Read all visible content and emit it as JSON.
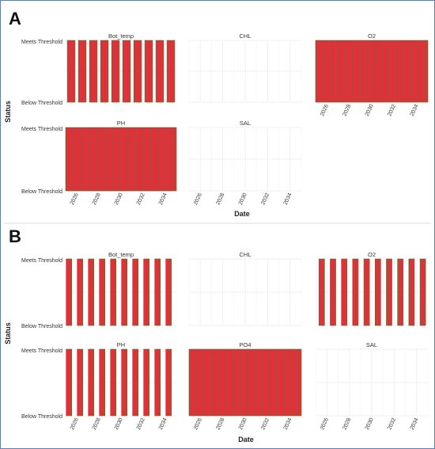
{
  "chart_data": [
    {
      "panel_label": "A",
      "type": "bar",
      "xlabel": "Date",
      "ylabel": "Status",
      "y_categories": [
        "Below Threshold",
        "Meets Threshold"
      ],
      "x_ticks": [
        "2026",
        "2028",
        "2030",
        "2032",
        "2034"
      ],
      "xlim": [
        2025,
        2035
      ],
      "bar_fill": "#e0323a",
      "bar_outline": "#5a6b2a",
      "facets": [
        {
          "title": "Bot_temp",
          "row": 0,
          "col": 0,
          "pattern": "seasonal",
          "segments": [
            [
              2025.15,
              2025.85
            ],
            [
              2026.15,
              2026.85
            ],
            [
              2027.15,
              2027.85
            ],
            [
              2028.15,
              2028.85
            ],
            [
              2029.15,
              2029.85
            ],
            [
              2030.15,
              2030.85
            ],
            [
              2031.15,
              2031.85
            ],
            [
              2032.15,
              2032.85
            ],
            [
              2033.15,
              2033.85
            ],
            [
              2034.15,
              2034.85
            ]
          ]
        },
        {
          "title": "CHL",
          "row": 0,
          "col": 1,
          "pattern": "none",
          "segments": []
        },
        {
          "title": "O2",
          "row": 0,
          "col": 2,
          "pattern": "full",
          "segments": [
            [
              2025.0,
              2035.0
            ]
          ]
        },
        {
          "title": "PH",
          "row": 1,
          "col": 0,
          "pattern": "full",
          "segments": [
            [
              2025.0,
              2035.0
            ]
          ]
        },
        {
          "title": "SAL",
          "row": 1,
          "col": 1,
          "pattern": "none",
          "segments": []
        }
      ]
    },
    {
      "panel_label": "B",
      "type": "bar",
      "xlabel": "Date",
      "ylabel": "Status",
      "y_categories": [
        "Below Threshold",
        "Meets Threshold"
      ],
      "x_ticks": [
        "2026",
        "2028",
        "2030",
        "2032",
        "2034"
      ],
      "xlim": [
        2025,
        2035
      ],
      "bar_fill": "#e0323a",
      "bar_outline": "#5a6b2a",
      "facets": [
        {
          "title": "Bot_temp",
          "row": 0,
          "col": 0,
          "pattern": "seasonal",
          "segments": [
            [
              2025.05,
              2025.55
            ],
            [
              2026.05,
              2026.55
            ],
            [
              2027.05,
              2027.55
            ],
            [
              2028.05,
              2028.55
            ],
            [
              2029.05,
              2029.55
            ],
            [
              2030.05,
              2030.55
            ],
            [
              2031.05,
              2031.55
            ],
            [
              2032.05,
              2032.55
            ],
            [
              2033.05,
              2033.55
            ],
            [
              2034.05,
              2034.55
            ]
          ]
        },
        {
          "title": "CHL",
          "row": 0,
          "col": 1,
          "pattern": "none",
          "segments": []
        },
        {
          "title": "O2",
          "row": 0,
          "col": 2,
          "pattern": "seasonal",
          "segments": [
            [
              2025.3,
              2025.8
            ],
            [
              2026.3,
              2026.8
            ],
            [
              2027.3,
              2027.8
            ],
            [
              2028.3,
              2028.8
            ],
            [
              2029.3,
              2029.8
            ],
            [
              2030.3,
              2030.8
            ],
            [
              2031.3,
              2031.8
            ],
            [
              2032.3,
              2032.8
            ],
            [
              2033.3,
              2033.8
            ],
            [
              2034.3,
              2034.8
            ]
          ]
        },
        {
          "title": "PH",
          "row": 1,
          "col": 0,
          "pattern": "seasonal",
          "segments": [
            [
              2025.05,
              2025.55
            ],
            [
              2026.05,
              2026.55
            ],
            [
              2027.05,
              2027.55
            ],
            [
              2028.05,
              2028.55
            ],
            [
              2029.05,
              2029.55
            ],
            [
              2030.05,
              2030.55
            ],
            [
              2031.05,
              2031.55
            ],
            [
              2032.05,
              2032.55
            ],
            [
              2033.05,
              2033.55
            ],
            [
              2034.05,
              2034.55
            ]
          ]
        },
        {
          "title": "PO4",
          "row": 1,
          "col": 1,
          "pattern": "full",
          "segments": [
            [
              2025.0,
              2035.0
            ]
          ]
        },
        {
          "title": "SAL",
          "row": 1,
          "col": 2,
          "pattern": "none",
          "segments": []
        }
      ]
    }
  ]
}
